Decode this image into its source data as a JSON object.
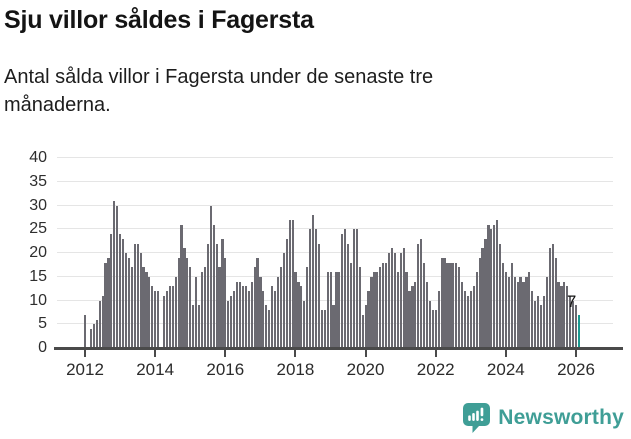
{
  "header": {
    "title": "Sju villor såldes i Fagersta",
    "subtitle": "Antal sålda villor i Fagersta under de senaste tre månaderna."
  },
  "chart_data": {
    "type": "bar",
    "title": "Sju villor såldes i Fagersta",
    "ylabel": "",
    "xlabel": "",
    "ylim": [
      0,
      40
    ],
    "grid": true,
    "y_ticks": [
      0,
      5,
      10,
      15,
      20,
      25,
      30,
      35,
      40
    ],
    "x_ticks": [
      2012,
      2014,
      2016,
      2018,
      2020,
      2022,
      2024,
      2026
    ],
    "start_year": 2012,
    "points_per_month": 1,
    "bar_color": "#6b6a71",
    "highlight_color": "#1a9990",
    "highlight_last": true,
    "last_value_label": "7",
    "values": [
      7,
      0,
      4,
      5,
      6,
      10,
      11,
      18,
      19,
      24,
      31,
      30,
      24,
      23,
      20,
      19,
      17,
      22,
      22,
      20,
      17,
      16,
      15,
      13,
      12,
      12,
      0,
      11,
      12,
      13,
      13,
      15,
      19,
      26,
      21,
      19,
      17,
      9,
      15,
      9,
      16,
      17,
      22,
      30,
      26,
      22,
      17,
      23,
      19,
      10,
      11,
      12,
      14,
      14,
      13,
      13,
      12,
      14,
      17,
      19,
      15,
      12,
      9,
      8,
      13,
      12,
      15,
      17,
      20,
      23,
      27,
      27,
      16,
      14,
      13,
      10,
      17,
      25,
      28,
      25,
      22,
      8,
      8,
      16,
      16,
      9,
      16,
      16,
      24,
      25,
      22,
      18,
      25,
      25,
      17,
      7,
      9,
      12,
      15,
      16,
      16,
      17,
      18,
      18,
      20,
      21,
      20,
      16,
      20,
      21,
      16,
      12,
      13,
      14,
      22,
      23,
      18,
      14,
      10,
      8,
      8,
      12,
      19,
      19,
      18,
      18,
      18,
      18,
      17,
      14,
      12,
      11,
      12,
      13,
      16,
      19,
      21,
      23,
      26,
      25,
      26,
      27,
      22,
      18,
      16,
      15,
      18,
      15,
      14,
      15,
      14,
      15,
      16,
      12,
      10,
      11,
      9,
      11,
      15,
      21,
      22,
      19,
      14,
      13,
      14,
      13,
      11,
      10,
      9,
      7
    ]
  },
  "footer": {
    "brand": "Newsworthy",
    "brand_color": "#3f9e96"
  }
}
